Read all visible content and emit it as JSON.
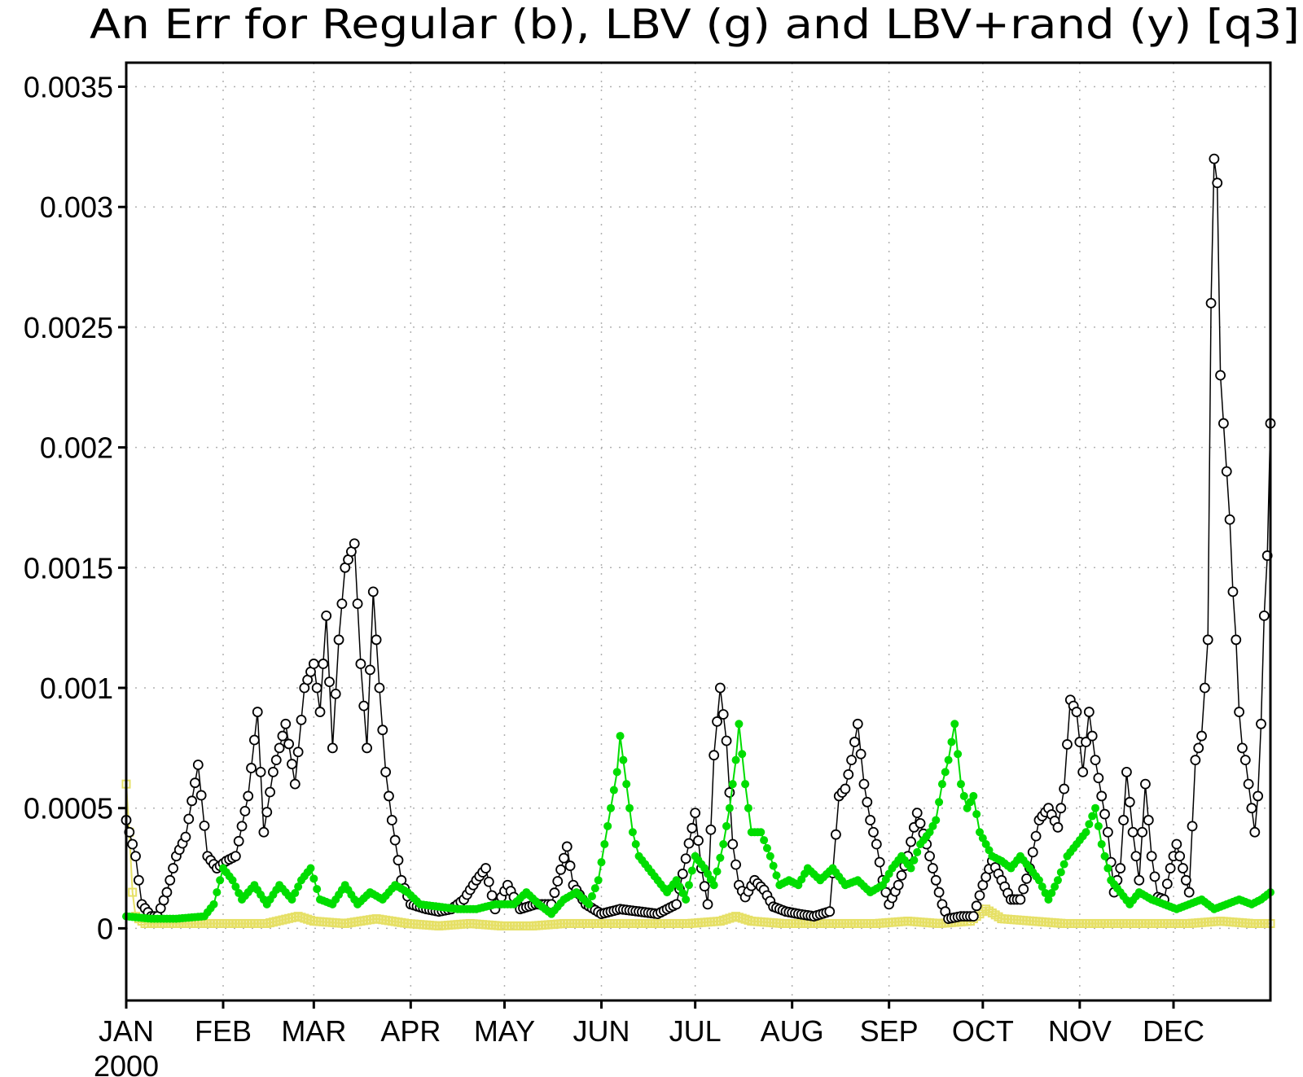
{
  "chart_data": {
    "type": "line",
    "title": "An Err for Regular (b), LBV (g) and LBV+rand (y) [q3]",
    "xlabel": "",
    "ylabel": "",
    "ylim": [
      -0.0003,
      0.0036
    ],
    "xlim": [
      0,
      366
    ],
    "grid": true,
    "yticks": [
      0,
      0.0005,
      0.001,
      0.0015,
      0.002,
      0.0025,
      0.003,
      0.0035
    ],
    "ytick_labels": [
      "0",
      "0.0005",
      "0.001",
      "0.0015",
      "0.002",
      "0.0025",
      "0.003",
      "0.0035"
    ],
    "xtick_labels": [
      "JAN",
      "FEB",
      "MAR",
      "APR",
      "MAY",
      "JUN",
      "JUL",
      "AUG",
      "SEP",
      "OCT",
      "NOV",
      "DEC"
    ],
    "xtick_days": [
      0,
      31,
      60,
      91,
      121,
      152,
      182,
      213,
      244,
      274,
      305,
      335
    ],
    "year_label": "2000",
    "series": [
      {
        "color": "#000000",
        "marker": "open-circle",
        "points": [
          [
            0,
            0.00045
          ],
          [
            3,
            0.0003
          ],
          [
            5,
            0.0001
          ],
          [
            8,
            5e-05
          ],
          [
            10,
            5e-05
          ],
          [
            13,
            0.00015
          ],
          [
            16,
            0.0003
          ],
          [
            19,
            0.00038
          ],
          [
            23,
            0.00068
          ],
          [
            26,
            0.0003
          ],
          [
            29,
            0.00025
          ],
          [
            32,
            0.00028
          ],
          [
            35,
            0.0003
          ],
          [
            39,
            0.00055
          ],
          [
            42,
            0.0009
          ],
          [
            44,
            0.0004
          ],
          [
            47,
            0.00065
          ],
          [
            51,
            0.00085
          ],
          [
            54,
            0.0006
          ],
          [
            57,
            0.001
          ],
          [
            60,
            0.0011
          ],
          [
            62,
            0.0009
          ],
          [
            64,
            0.0013
          ],
          [
            66,
            0.00075
          ],
          [
            68,
            0.0012
          ],
          [
            70,
            0.0015
          ],
          [
            73,
            0.0016
          ],
          [
            75,
            0.0011
          ],
          [
            77,
            0.00075
          ],
          [
            79,
            0.0014
          ],
          [
            81,
            0.001
          ],
          [
            83,
            0.00065
          ],
          [
            85,
            0.00045
          ],
          [
            88,
            0.0002
          ],
          [
            91,
            0.0001
          ],
          [
            96,
            8e-05
          ],
          [
            100,
            7e-05
          ],
          [
            104,
            8e-05
          ],
          [
            108,
            0.00012
          ],
          [
            112,
            0.0002
          ],
          [
            115,
            0.00025
          ],
          [
            118,
            8e-05
          ],
          [
            122,
            0.00018
          ],
          [
            126,
            8e-05
          ],
          [
            131,
            0.0001
          ],
          [
            136,
            0.0001
          ],
          [
            141,
            0.00034
          ],
          [
            143,
            0.00018
          ],
          [
            147,
            0.0001
          ],
          [
            152,
            6e-05
          ],
          [
            158,
            8e-05
          ],
          [
            164,
            7e-05
          ],
          [
            170,
            6e-05
          ],
          [
            176,
            0.0001
          ],
          [
            182,
            0.00048
          ],
          [
            184,
            0.00025
          ],
          [
            186,
            0.0001
          ],
          [
            188,
            0.00072
          ],
          [
            190,
            0.001
          ],
          [
            192,
            0.00078
          ],
          [
            194,
            0.00035
          ],
          [
            196,
            0.00018
          ],
          [
            198,
            0.00013
          ],
          [
            201,
            0.0002
          ],
          [
            204,
            0.00016
          ],
          [
            207,
            9e-05
          ],
          [
            211,
            7e-05
          ],
          [
            215,
            6e-05
          ],
          [
            220,
            5e-05
          ],
          [
            225,
            7e-05
          ],
          [
            228,
            0.00055
          ],
          [
            230,
            0.00058
          ],
          [
            232,
            0.0007
          ],
          [
            234,
            0.00085
          ],
          [
            236,
            0.0006
          ],
          [
            238,
            0.00045
          ],
          [
            240,
            0.00035
          ],
          [
            242,
            0.0002
          ],
          [
            244,
            0.0001
          ],
          [
            247,
            0.00018
          ],
          [
            250,
            0.0003
          ],
          [
            253,
            0.00048
          ],
          [
            256,
            0.00035
          ],
          [
            259,
            0.0002
          ],
          [
            261,
            0.0001
          ],
          [
            263,
            4e-05
          ],
          [
            267,
            5e-05
          ],
          [
            271,
            5e-05
          ],
          [
            274,
            0.00018
          ],
          [
            277,
            0.00028
          ],
          [
            280,
            0.0002
          ],
          [
            283,
            0.00012
          ],
          [
            286,
            0.00012
          ],
          [
            289,
            0.00025
          ],
          [
            292,
            0.00045
          ],
          [
            295,
            0.0005
          ],
          [
            298,
            0.00042
          ],
          [
            300,
            0.00058
          ],
          [
            302,
            0.00095
          ],
          [
            304,
            0.0009
          ],
          [
            306,
            0.00065
          ],
          [
            308,
            0.0009
          ],
          [
            310,
            0.0007
          ],
          [
            312,
            0.00055
          ],
          [
            314,
            0.0004
          ],
          [
            316,
            0.00015
          ],
          [
            318,
            0.00025
          ],
          [
            320,
            0.00065
          ],
          [
            322,
            0.0004
          ],
          [
            324,
            0.0002
          ],
          [
            326,
            0.0006
          ],
          [
            328,
            0.0003
          ],
          [
            330,
            0.00013
          ],
          [
            332,
            0.00012
          ],
          [
            334,
            0.00025
          ],
          [
            336,
            0.00035
          ],
          [
            338,
            0.00025
          ],
          [
            340,
            0.00015
          ],
          [
            342,
            0.0007
          ],
          [
            344,
            0.0008
          ],
          [
            346,
            0.0012
          ],
          [
            347,
            0.0026
          ],
          [
            348,
            0.0032
          ],
          [
            349,
            0.0031
          ],
          [
            350,
            0.0023
          ],
          [
            351,
            0.0021
          ],
          [
            352,
            0.0019
          ],
          [
            353,
            0.0017
          ],
          [
            354,
            0.0014
          ],
          [
            355,
            0.0012
          ],
          [
            356,
            0.0009
          ],
          [
            357,
            0.00075
          ],
          [
            358,
            0.0007
          ],
          [
            359,
            0.0006
          ],
          [
            360,
            0.0005
          ],
          [
            361,
            0.0004
          ],
          [
            362,
            0.00055
          ],
          [
            363,
            0.00085
          ],
          [
            364,
            0.0013
          ],
          [
            365,
            0.00155
          ],
          [
            366,
            0.0021
          ]
        ]
      },
      {
        "color": "#00dd00",
        "marker": "filled-circle",
        "points": [
          [
            0,
            5e-05
          ],
          [
            8,
            4e-05
          ],
          [
            16,
            4e-05
          ],
          [
            25,
            5e-05
          ],
          [
            28,
            0.0001
          ],
          [
            31,
            0.00025
          ],
          [
            34,
            0.0002
          ],
          [
            37,
            0.00012
          ],
          [
            41,
            0.00018
          ],
          [
            45,
            0.0001
          ],
          [
            49,
            0.00018
          ],
          [
            53,
            0.00012
          ],
          [
            56,
            0.0002
          ],
          [
            59,
            0.00025
          ],
          [
            62,
            0.00012
          ],
          [
            66,
            0.0001
          ],
          [
            70,
            0.00018
          ],
          [
            74,
            0.0001
          ],
          [
            78,
            0.00015
          ],
          [
            82,
            0.00012
          ],
          [
            86,
            0.00018
          ],
          [
            90,
            0.00015
          ],
          [
            94,
            0.0001
          ],
          [
            100,
            9e-05
          ],
          [
            106,
            8e-05
          ],
          [
            112,
            8e-05
          ],
          [
            118,
            0.0001
          ],
          [
            124,
            0.0001
          ],
          [
            128,
            0.00015
          ],
          [
            132,
            0.0001
          ],
          [
            136,
            6e-05
          ],
          [
            140,
            0.00012
          ],
          [
            144,
            0.00015
          ],
          [
            148,
            0.0001
          ],
          [
            151,
            0.0002
          ],
          [
            153,
            0.00035
          ],
          [
            155,
            0.0005
          ],
          [
            157,
            0.00065
          ],
          [
            158,
            0.0008
          ],
          [
            160,
            0.0006
          ],
          [
            162,
            0.0004
          ],
          [
            164,
            0.0003
          ],
          [
            167,
            0.00025
          ],
          [
            170,
            0.0002
          ],
          [
            173,
            0.00015
          ],
          [
            176,
            0.0002
          ],
          [
            179,
            0.00012
          ],
          [
            182,
            0.0003
          ],
          [
            185,
            0.00025
          ],
          [
            188,
            0.00018
          ],
          [
            191,
            0.00035
          ],
          [
            193,
            0.0005
          ],
          [
            195,
            0.0007
          ],
          [
            196,
            0.00085
          ],
          [
            198,
            0.0006
          ],
          [
            200,
            0.0004
          ],
          [
            203,
            0.0004
          ],
          [
            206,
            0.0003
          ],
          [
            209,
            0.00018
          ],
          [
            212,
            0.0002
          ],
          [
            215,
            0.00018
          ],
          [
            218,
            0.00025
          ],
          [
            222,
            0.0002
          ],
          [
            226,
            0.00025
          ],
          [
            230,
            0.00018
          ],
          [
            234,
            0.0002
          ],
          [
            238,
            0.00015
          ],
          [
            242,
            0.00018
          ],
          [
            245,
            0.00025
          ],
          [
            248,
            0.0003
          ],
          [
            251,
            0.00025
          ],
          [
            254,
            0.00035
          ],
          [
            257,
            0.0004
          ],
          [
            259,
            0.00045
          ],
          [
            261,
            0.0006
          ],
          [
            263,
            0.0007
          ],
          [
            265,
            0.00085
          ],
          [
            267,
            0.0006
          ],
          [
            269,
            0.0005
          ],
          [
            271,
            0.00055
          ],
          [
            273,
            0.0004
          ],
          [
            275,
            0.00035
          ],
          [
            277,
            0.0003
          ],
          [
            280,
            0.00028
          ],
          [
            283,
            0.00025
          ],
          [
            286,
            0.0003
          ],
          [
            289,
            0.00025
          ],
          [
            292,
            0.0002
          ],
          [
            295,
            0.00012
          ],
          [
            298,
            0.0002
          ],
          [
            301,
            0.0003
          ],
          [
            304,
            0.00035
          ],
          [
            307,
            0.0004
          ],
          [
            310,
            0.0005
          ],
          [
            312,
            0.00035
          ],
          [
            315,
            0.0002
          ],
          [
            318,
            0.00015
          ],
          [
            321,
            0.0001
          ],
          [
            324,
            0.00015
          ],
          [
            328,
            0.00012
          ],
          [
            332,
            0.0001
          ],
          [
            336,
            8e-05
          ],
          [
            340,
            0.0001
          ],
          [
            344,
            0.00012
          ],
          [
            348,
            8e-05
          ],
          [
            352,
            0.0001
          ],
          [
            356,
            0.00012
          ],
          [
            360,
            0.0001
          ],
          [
            363,
            0.00012
          ],
          [
            366,
            0.00015
          ]
        ]
      },
      {
        "color": "#e6e066",
        "marker": "open-square",
        "points": [
          [
            0,
            0.0006
          ],
          [
            1,
            0.0004
          ],
          [
            2,
            0.00015
          ],
          [
            3,
            5e-05
          ],
          [
            6,
            2e-05
          ],
          [
            15,
            2e-05
          ],
          [
            30,
            2e-05
          ],
          [
            45,
            2e-05
          ],
          [
            55,
            5e-05
          ],
          [
            60,
            3e-05
          ],
          [
            70,
            2e-05
          ],
          [
            80,
            4e-05
          ],
          [
            90,
            2e-05
          ],
          [
            100,
            1e-05
          ],
          [
            110,
            2e-05
          ],
          [
            120,
            1e-05
          ],
          [
            130,
            1e-05
          ],
          [
            140,
            2e-05
          ],
          [
            150,
            2e-05
          ],
          [
            160,
            2e-05
          ],
          [
            170,
            2e-05
          ],
          [
            180,
            2e-05
          ],
          [
            190,
            3e-05
          ],
          [
            195,
            5e-05
          ],
          [
            200,
            3e-05
          ],
          [
            210,
            2e-05
          ],
          [
            220,
            2e-05
          ],
          [
            230,
            2e-05
          ],
          [
            240,
            2e-05
          ],
          [
            250,
            3e-05
          ],
          [
            260,
            2e-05
          ],
          [
            270,
            3e-05
          ],
          [
            275,
            8e-05
          ],
          [
            280,
            4e-05
          ],
          [
            290,
            3e-05
          ],
          [
            300,
            2e-05
          ],
          [
            310,
            2e-05
          ],
          [
            320,
            2e-05
          ],
          [
            330,
            2e-05
          ],
          [
            340,
            2e-05
          ],
          [
            350,
            3e-05
          ],
          [
            360,
            2e-05
          ],
          [
            366,
            2e-05
          ]
        ]
      }
    ]
  }
}
